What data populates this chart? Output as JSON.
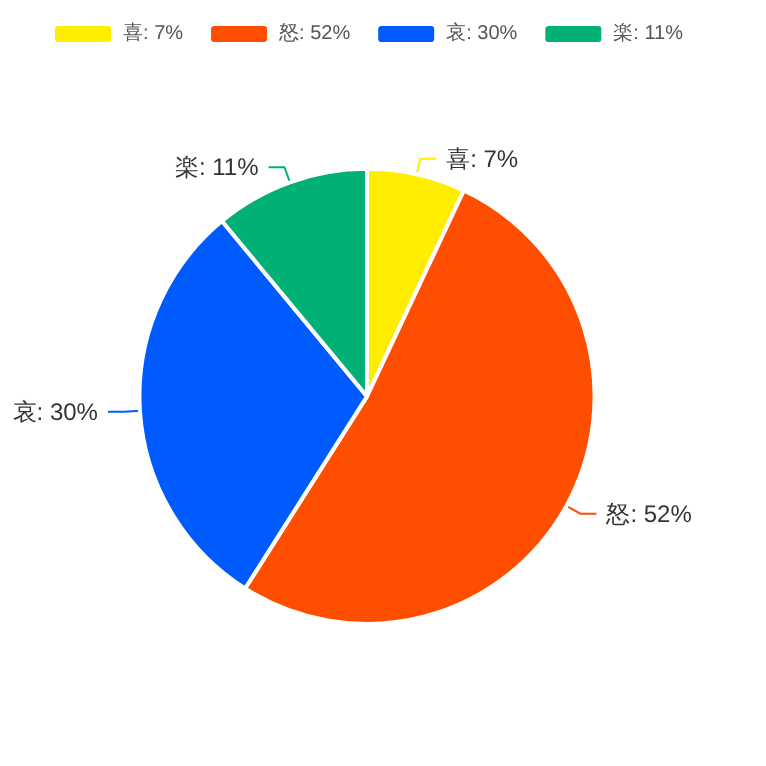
{
  "chart_data": {
    "type": "pie",
    "categories": [
      "喜",
      "怒",
      "哀",
      "楽"
    ],
    "values": [
      7,
      52,
      30,
      11
    ],
    "colors": [
      "#ffee00",
      "#ff4e00",
      "#005bff",
      "#00b077"
    ],
    "value_labels": [
      "7%",
      "52%",
      "30%",
      "11%"
    ],
    "legend": "top"
  }
}
